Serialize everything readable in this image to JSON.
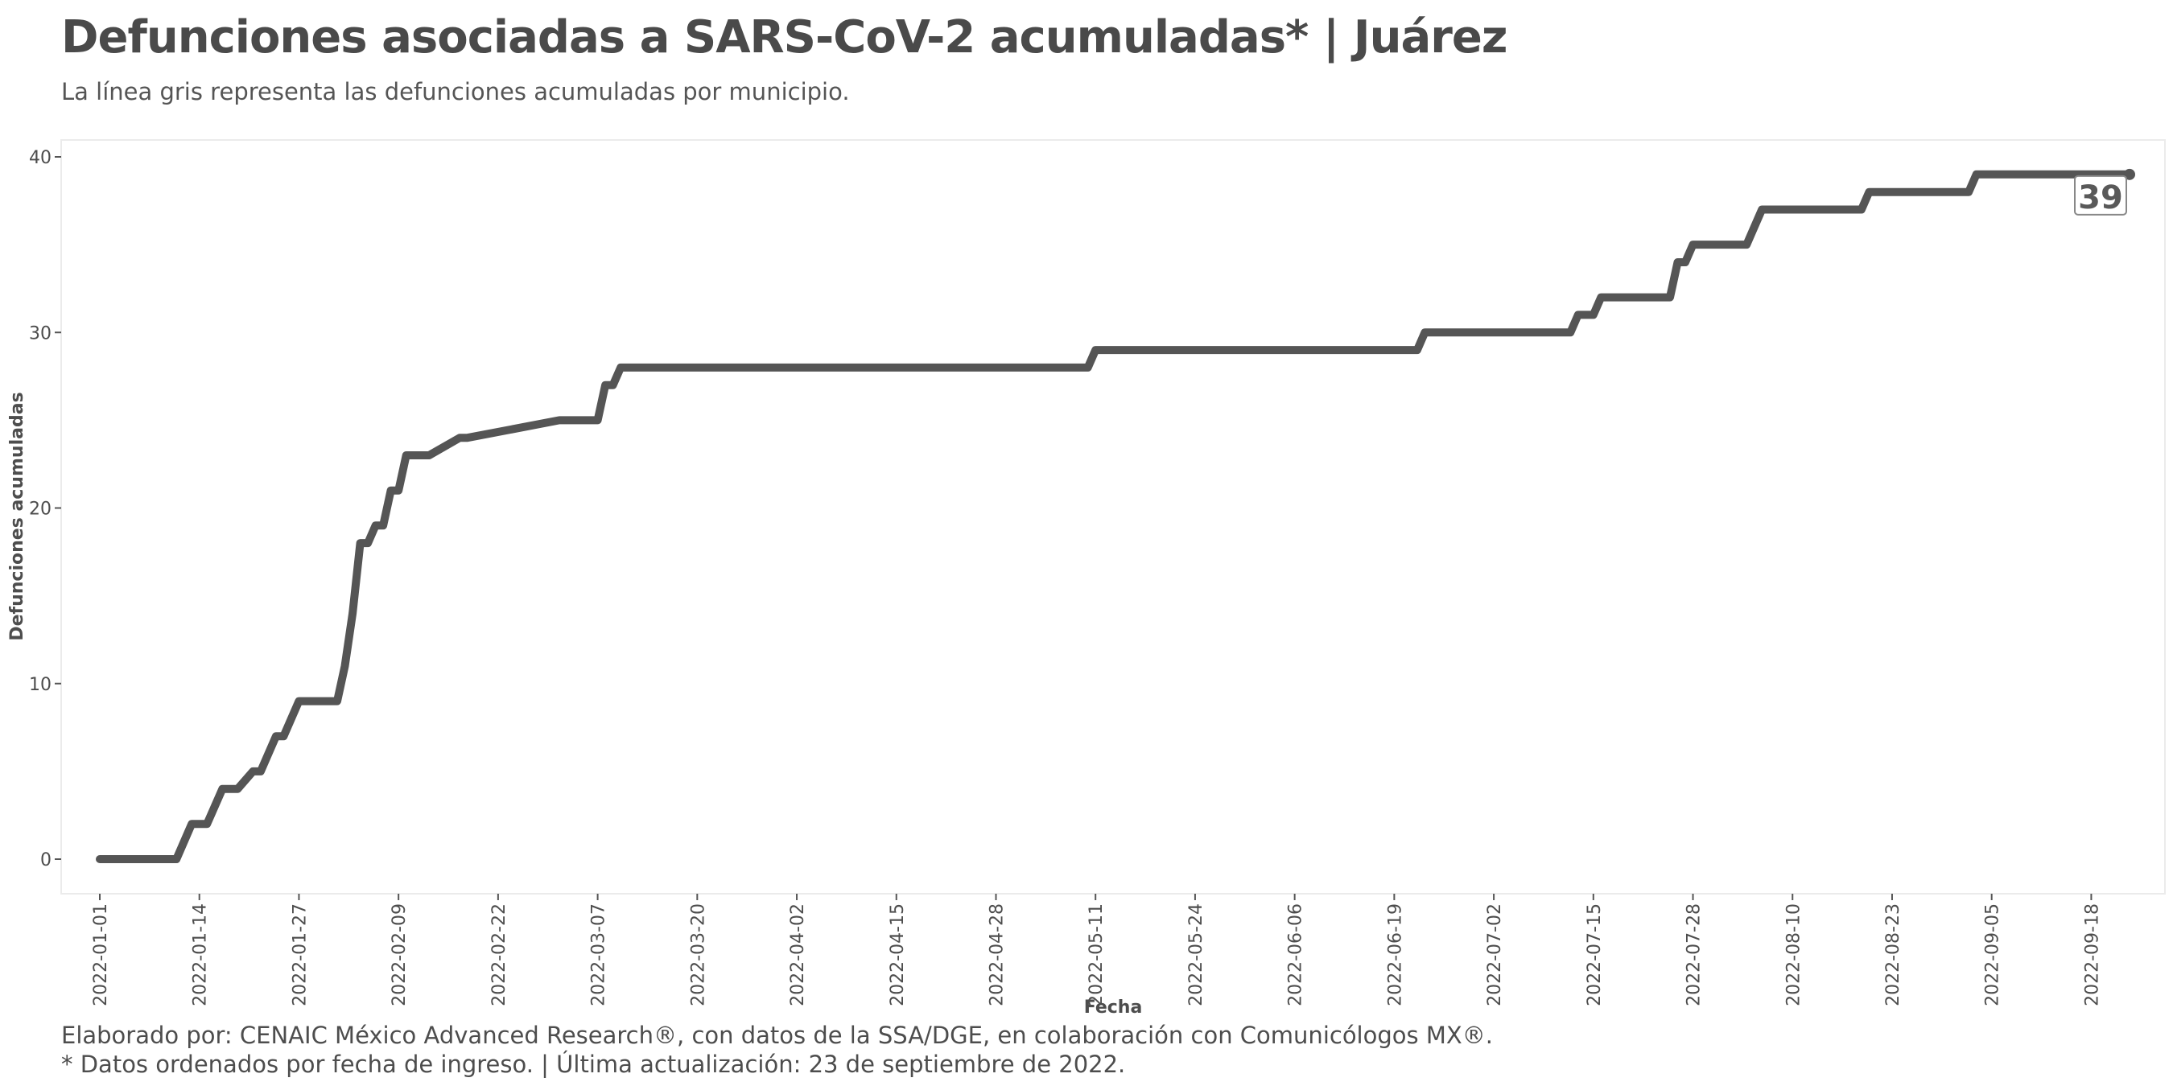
{
  "header": {
    "title": "Defunciones asociadas a SARS-CoV-2 acumuladas* | Juárez",
    "subtitle": "La línea gris representa las defunciones acumuladas por municipio."
  },
  "footer": {
    "line1": "Elaborado por: CENAIC México Advanced Research®, con datos de la SSA/DGE, en colaboración con Comunicólogos MX®.",
    "line2": "* Datos ordenados por fecha de ingreso. | Última actualización: 23 de septiembre de 2022."
  },
  "chart_data": {
    "type": "line",
    "title": "Defunciones asociadas a SARS-CoV-2 acumuladas* | Juárez",
    "subtitle": "La línea gris representa las defunciones acumuladas por municipio.",
    "xlabel": "Fecha",
    "ylabel": "Defunciones acumuladas",
    "xlim": [
      "2022-01-01",
      "2022-09-23"
    ],
    "ylim": [
      0,
      40
    ],
    "x_ticks": [
      "2022-01-01",
      "2022-01-14",
      "2022-01-27",
      "2022-02-09",
      "2022-02-22",
      "2022-03-07",
      "2022-03-20",
      "2022-04-02",
      "2022-04-15",
      "2022-04-28",
      "2022-05-11",
      "2022-05-24",
      "2022-06-06",
      "2022-06-19",
      "2022-07-02",
      "2022-07-15",
      "2022-07-28",
      "2022-08-10",
      "2022-08-23",
      "2022-09-05",
      "2022-09-18"
    ],
    "y_ticks": [
      0,
      10,
      20,
      30,
      40
    ],
    "grid": false,
    "line_color": "#555555",
    "end_label": "39",
    "series": [
      {
        "x": [
          "2022-01-01",
          "2022-01-11",
          "2022-01-13",
          "2022-01-15",
          "2022-01-17",
          "2022-01-19",
          "2022-01-21",
          "2022-01-22",
          "2022-01-24",
          "2022-01-25",
          "2022-01-27",
          "2022-02-01",
          "2022-02-02",
          "2022-02-03",
          "2022-02-04",
          "2022-02-05",
          "2022-02-06",
          "2022-02-07",
          "2022-02-08",
          "2022-02-09",
          "2022-02-10",
          "2022-02-13",
          "2022-02-17",
          "2022-02-18",
          "2022-03-02",
          "2022-03-03",
          "2022-03-07",
          "2022-03-08",
          "2022-03-09",
          "2022-03-10",
          "2022-05-10",
          "2022-05-11",
          "2022-06-22",
          "2022-06-23",
          "2022-07-12",
          "2022-07-13",
          "2022-07-15",
          "2022-07-16",
          "2022-07-25",
          "2022-07-26",
          "2022-07-27",
          "2022-07-28",
          "2022-08-04",
          "2022-08-06",
          "2022-08-19",
          "2022-08-20",
          "2022-09-02",
          "2022-09-03",
          "2022-09-23"
        ],
        "y": [
          0,
          0,
          2,
          2,
          4,
          4,
          5,
          5,
          7,
          7,
          9,
          9,
          11,
          14,
          18,
          18,
          19,
          19,
          21,
          21,
          23,
          23,
          24,
          24,
          25,
          25,
          25,
          27,
          27,
          28,
          28,
          29,
          29,
          30,
          30,
          31,
          31,
          32,
          32,
          34,
          34,
          35,
          35,
          37,
          37,
          38,
          38,
          39,
          39
        ]
      }
    ]
  }
}
